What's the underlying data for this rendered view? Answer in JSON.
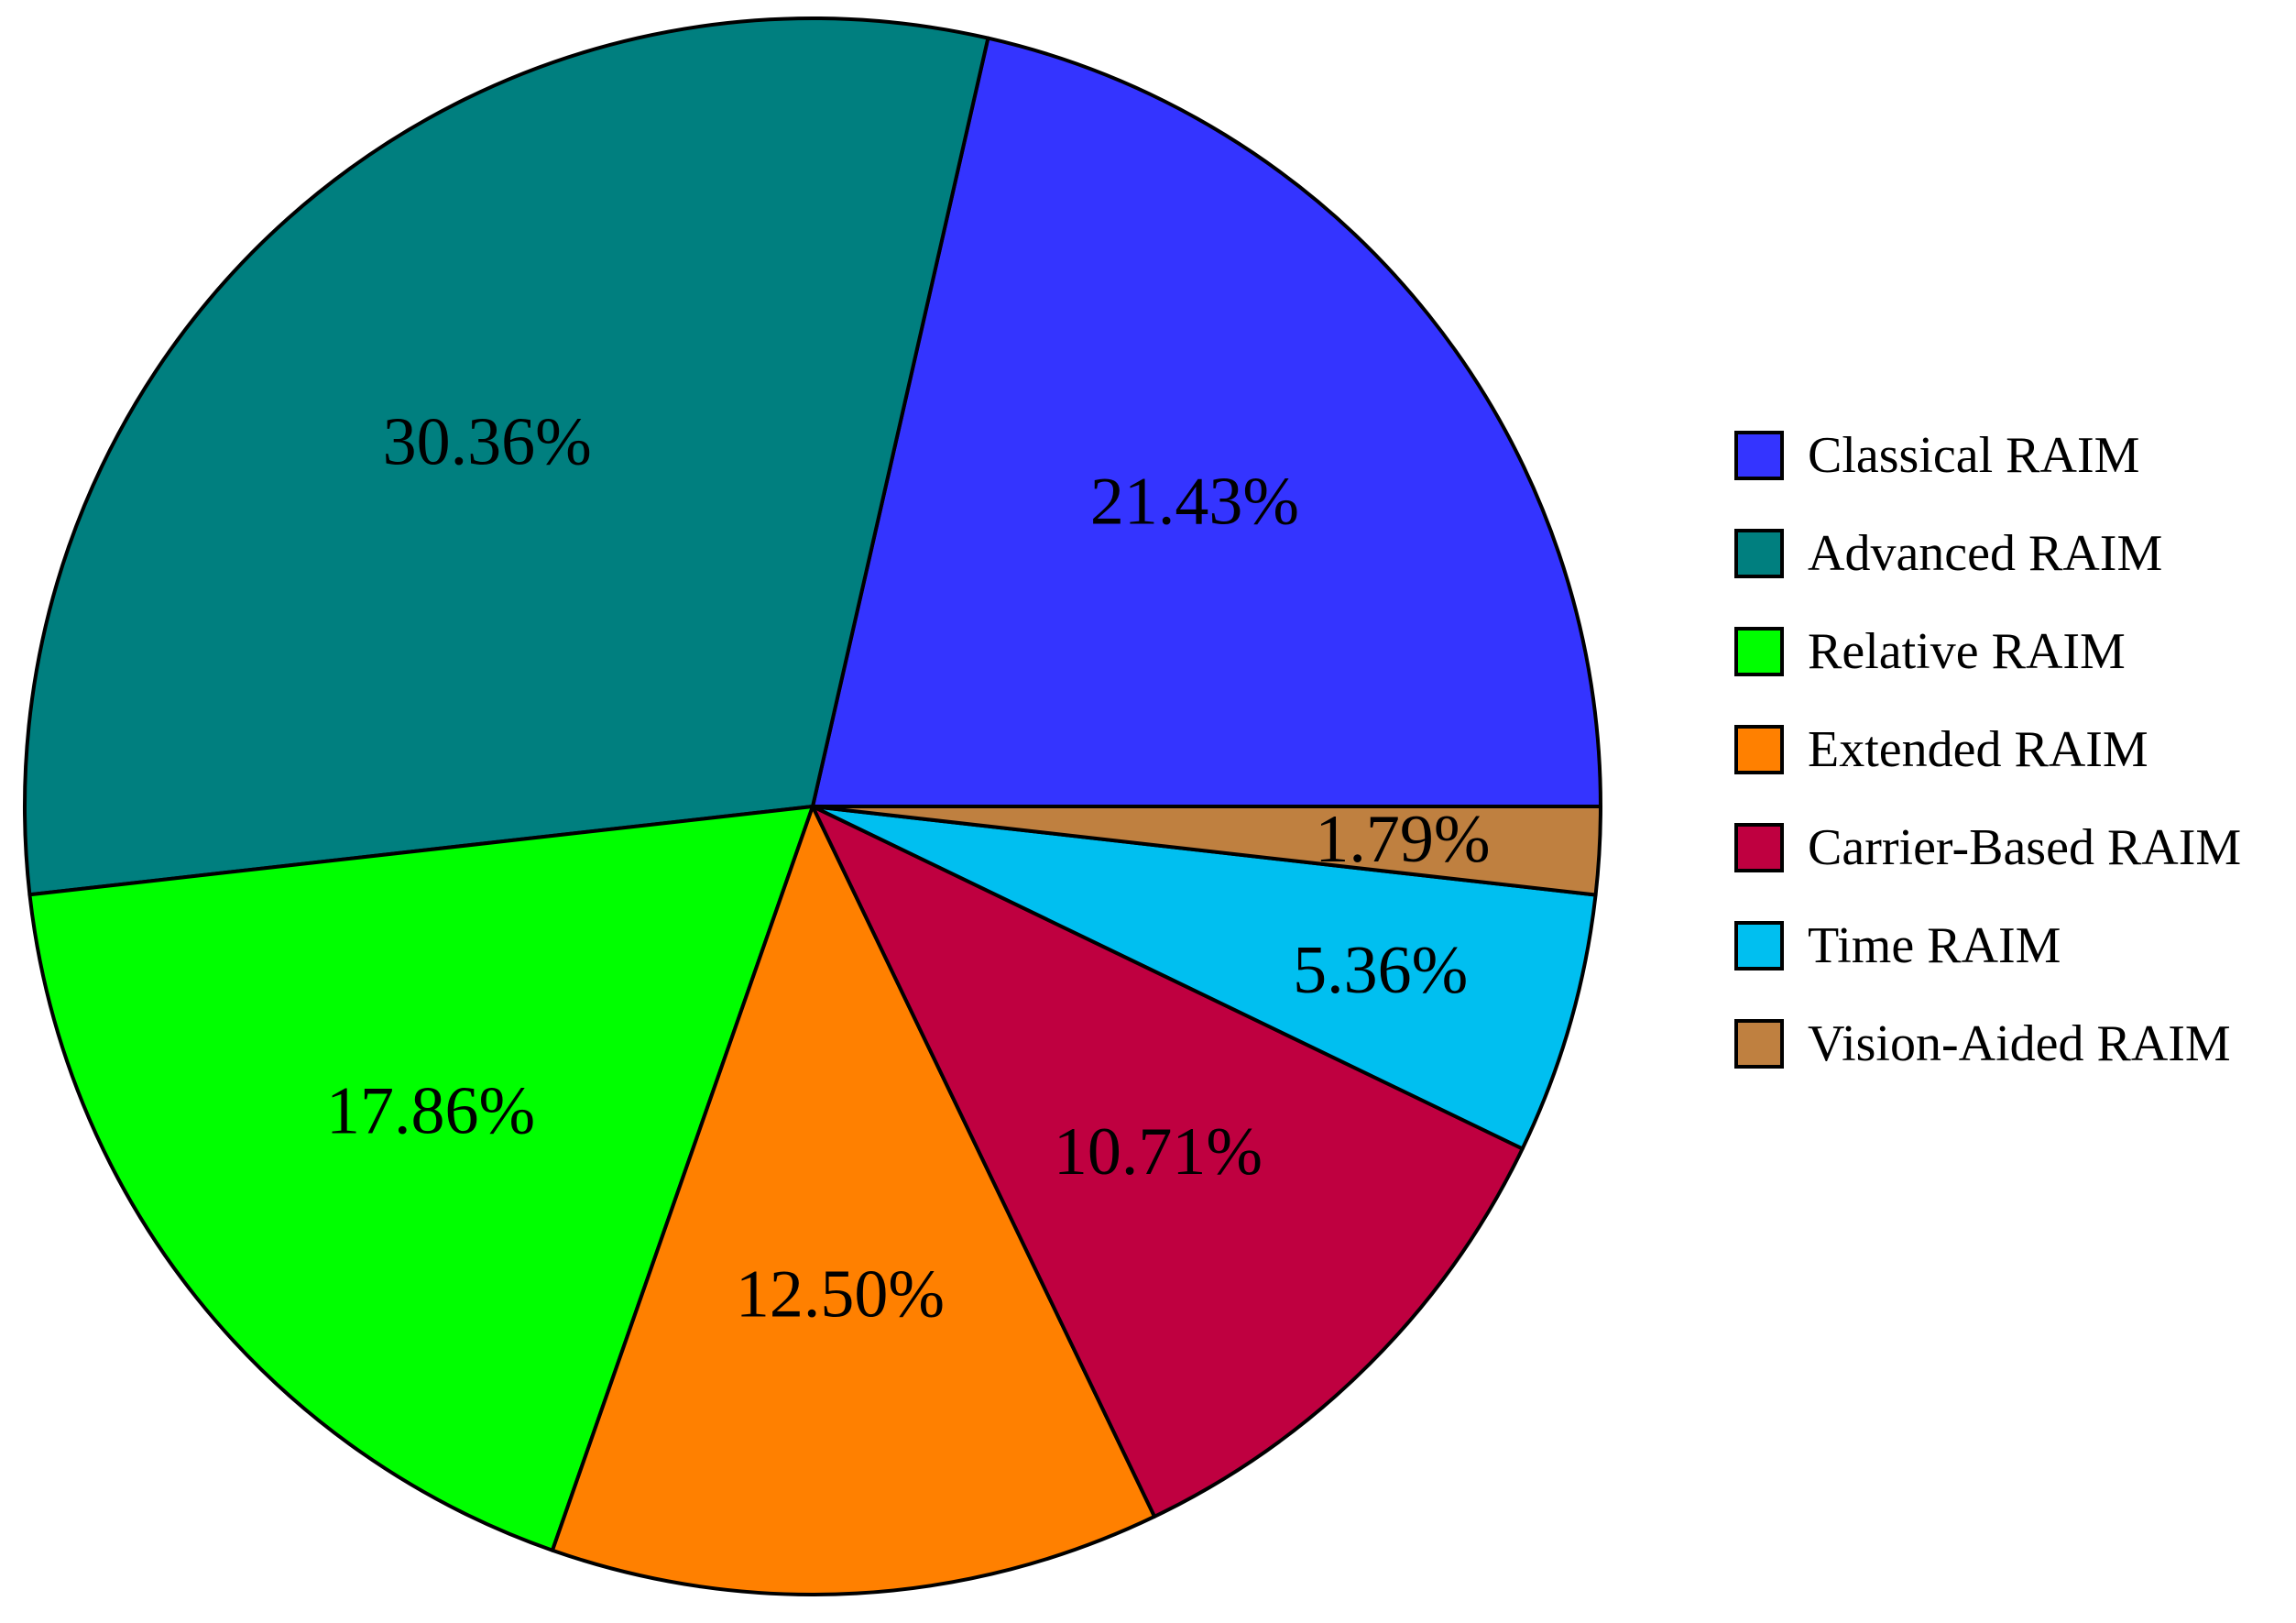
{
  "chart_data": {
    "type": "pie",
    "title": "",
    "legend_position": "right",
    "start_angle_deg": 0,
    "direction": "counterclockwise",
    "slices": [
      {
        "label": "Classical RAIM",
        "value": 21.43,
        "value_label": "21.43%",
        "color": "#3434FF"
      },
      {
        "label": "Advanced RAIM",
        "value": 30.36,
        "value_label": "30.36%",
        "color": "#007F7F"
      },
      {
        "label": "Relative RAIM",
        "value": 17.86,
        "value_label": "17.86%",
        "color": "#00FF00"
      },
      {
        "label": "Extended RAIM",
        "value": 12.5,
        "value_label": "12.50%",
        "color": "#FF8000"
      },
      {
        "label": "Carrier-Based RAIM",
        "value": 10.71,
        "value_label": "10.71%",
        "color": "#BF0040"
      },
      {
        "label": "Time RAIM",
        "value": 5.36,
        "value_label": "5.36%",
        "color": "#00BFF0"
      },
      {
        "label": "Vision-Aided RAIM",
        "value": 1.79,
        "value_label": "1.79%",
        "color": "#BF8040"
      }
    ]
  }
}
